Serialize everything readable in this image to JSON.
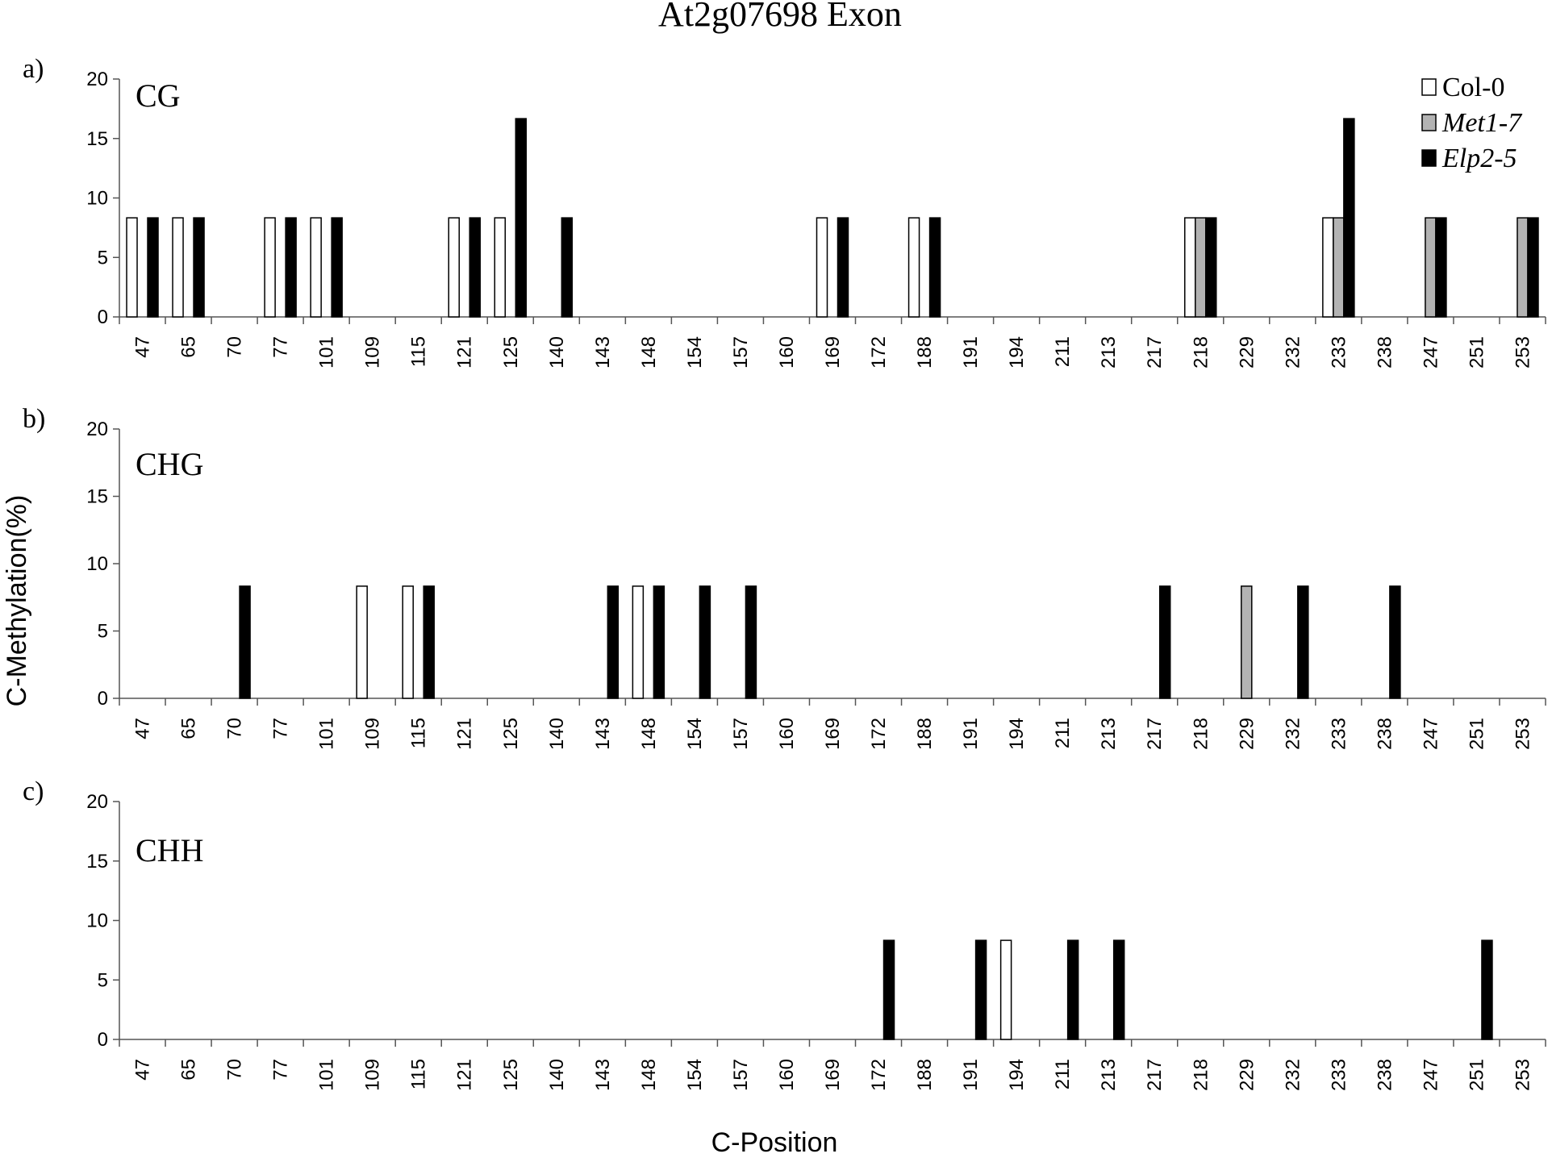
{
  "figure": {
    "title": "At2g07698 Exon",
    "ylabel": "C-Methylation(%)",
    "xlabel": "C-Position"
  },
  "legend": [
    {
      "name": "Col-0",
      "color": "#ffffff",
      "italic": false
    },
    {
      "name": "Met1-7",
      "color": "#b3b3b3",
      "italic": true
    },
    {
      "name": "Elp2-5",
      "color": "#000000",
      "italic": true
    }
  ],
  "chart_data": [
    {
      "type": "bar",
      "panel_label": "a)",
      "context_label": "CG",
      "categories": [
        "47",
        "65",
        "70",
        "77",
        "101",
        "109",
        "115",
        "121",
        "125",
        "140",
        "143",
        "148",
        "154",
        "157",
        "160",
        "169",
        "172",
        "188",
        "191",
        "194",
        "211",
        "213",
        "217",
        "218",
        "229",
        "232",
        "233",
        "238",
        "247",
        "251",
        "253"
      ],
      "yticks": [
        0,
        5,
        10,
        15,
        20
      ],
      "ylim": [
        0,
        20
      ],
      "series": [
        {
          "name": "Col-0",
          "values": [
            8.33,
            8.33,
            0,
            8.33,
            8.33,
            0,
            0,
            8.33,
            8.33,
            0,
            0,
            0,
            0,
            0,
            0,
            8.33,
            0,
            8.33,
            0,
            0,
            0,
            0,
            0,
            8.33,
            0,
            0,
            8.33,
            0,
            0,
            0,
            0
          ]
        },
        {
          "name": "Met1-7",
          "values": [
            0,
            0,
            0,
            0,
            0,
            0,
            0,
            0,
            0,
            0,
            0,
            0,
            0,
            0,
            0,
            0,
            0,
            0,
            0,
            0,
            0,
            0,
            0,
            8.33,
            0,
            0,
            8.33,
            0,
            8.33,
            0,
            8.33
          ]
        },
        {
          "name": "Elp2-5",
          "values": [
            8.33,
            8.33,
            0,
            8.33,
            8.33,
            0,
            0,
            8.33,
            16.67,
            8.33,
            0,
            0,
            0,
            0,
            0,
            8.33,
            0,
            8.33,
            0,
            0,
            0,
            0,
            0,
            8.33,
            0,
            0,
            16.67,
            0,
            8.33,
            0,
            8.33
          ]
        }
      ]
    },
    {
      "type": "bar",
      "panel_label": "b)",
      "context_label": "CHG",
      "categories": [
        "47",
        "65",
        "70",
        "77",
        "101",
        "109",
        "115",
        "121",
        "125",
        "140",
        "143",
        "148",
        "154",
        "157",
        "160",
        "169",
        "172",
        "188",
        "191",
        "194",
        "211",
        "213",
        "217",
        "218",
        "229",
        "232",
        "233",
        "238",
        "247",
        "251",
        "253"
      ],
      "yticks": [
        0,
        5,
        10,
        15,
        20
      ],
      "ylim": [
        0,
        20
      ],
      "series": [
        {
          "name": "Col-0",
          "values": [
            0,
            0,
            0,
            0,
            0,
            8.33,
            8.33,
            0,
            0,
            0,
            0,
            8.33,
            0,
            0,
            0,
            0,
            0,
            0,
            0,
            0,
            0,
            0,
            0,
            0,
            0,
            0,
            0,
            0,
            0,
            0,
            0
          ]
        },
        {
          "name": "Met1-7",
          "values": [
            0,
            0,
            0,
            0,
            0,
            0,
            0,
            0,
            0,
            0,
            0,
            0,
            0,
            0,
            0,
            0,
            0,
            0,
            0,
            0,
            0,
            0,
            0,
            0,
            8.33,
            0,
            0,
            0,
            0,
            0,
            0
          ]
        },
        {
          "name": "Elp2-5",
          "values": [
            0,
            0,
            8.33,
            0,
            0,
            0,
            8.33,
            0,
            0,
            0,
            8.33,
            8.33,
            8.33,
            8.33,
            0,
            0,
            0,
            0,
            0,
            0,
            0,
            0,
            8.33,
            0,
            0,
            8.33,
            0,
            8.33,
            0,
            0,
            0
          ]
        }
      ]
    },
    {
      "type": "bar",
      "panel_label": "c)",
      "context_label": "CHH",
      "categories": [
        "47",
        "65",
        "70",
        "77",
        "101",
        "109",
        "115",
        "121",
        "125",
        "140",
        "143",
        "148",
        "154",
        "157",
        "160",
        "169",
        "172",
        "188",
        "191",
        "194",
        "211",
        "213",
        "217",
        "218",
        "229",
        "232",
        "233",
        "238",
        "247",
        "251",
        "253"
      ],
      "yticks": [
        0,
        5,
        10,
        15,
        20
      ],
      "ylim": [
        0,
        20
      ],
      "series": [
        {
          "name": "Col-0",
          "values": [
            0,
            0,
            0,
            0,
            0,
            0,
            0,
            0,
            0,
            0,
            0,
            0,
            0,
            0,
            0,
            0,
            0,
            0,
            0,
            8.33,
            0,
            0,
            0,
            0,
            0,
            0,
            0,
            0,
            0,
            0,
            0
          ]
        },
        {
          "name": "Met1-7",
          "values": [
            0,
            0,
            0,
            0,
            0,
            0,
            0,
            0,
            0,
            0,
            0,
            0,
            0,
            0,
            0,
            0,
            0,
            0,
            0,
            0,
            0,
            0,
            0,
            0,
            0,
            0,
            0,
            0,
            0,
            0,
            0
          ]
        },
        {
          "name": "Elp2-5",
          "values": [
            0,
            0,
            0,
            0,
            0,
            0,
            0,
            0,
            0,
            0,
            0,
            0,
            0,
            0,
            0,
            0,
            8.33,
            0,
            8.33,
            0,
            8.33,
            8.33,
            0,
            0,
            0,
            0,
            0,
            0,
            0,
            8.33,
            0
          ]
        }
      ]
    }
  ]
}
